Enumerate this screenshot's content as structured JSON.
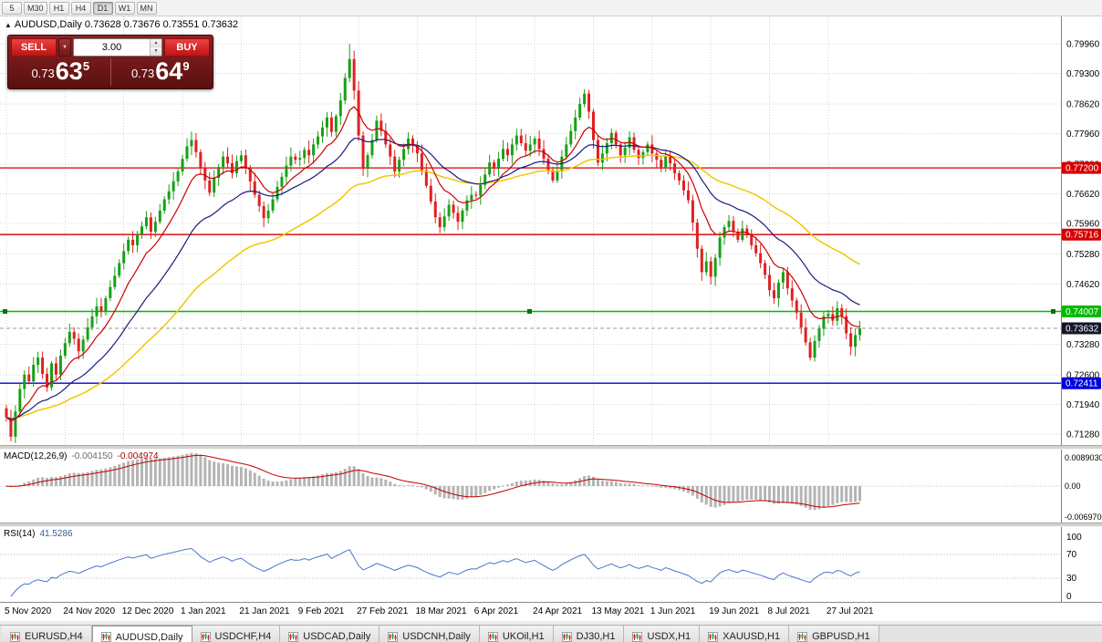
{
  "toolbar": {
    "timeframes": [
      "5",
      "M30",
      "H1",
      "H4",
      "D1",
      "W1",
      "MN"
    ],
    "active": "D1"
  },
  "chart": {
    "arrow": "▲",
    "title": "AUDUSD,Daily 0.73628 0.73676 0.73551 0.73632"
  },
  "one_click": {
    "sell_label": "SELL",
    "buy_label": "BUY",
    "volume": "3.00",
    "sell_price": {
      "small": "0.73",
      "big": "63",
      "sup": "5"
    },
    "buy_price": {
      "small": "0.73",
      "big": "64",
      "sup": "9"
    }
  },
  "macd": {
    "name": "MACD(12,26,9)",
    "main_value": "-0.004150",
    "signal_value": "-0.004974",
    "scale_max": "0.0089030",
    "scale_zero": "0.00",
    "scale_min": "-0.0069700"
  },
  "rsi": {
    "name": "RSI(14)",
    "value": "41.5286",
    "scale": [
      "100",
      "70",
      "30",
      "0"
    ]
  },
  "tabs": [
    {
      "label": "EURUSD,H4"
    },
    {
      "label": "AUDUSD,Daily",
      "active": true
    },
    {
      "label": "USDCHF,H4"
    },
    {
      "label": "USDCAD,Daily"
    },
    {
      "label": "USDCNH,Daily"
    },
    {
      "label": "UKOil,H1"
    },
    {
      "label": "DJ30,H1"
    },
    {
      "label": "USDX,H1"
    },
    {
      "label": "XAUUSD,H1"
    },
    {
      "label": "GBPUSD,H1"
    }
  ],
  "chart_data": {
    "type": "candlestick",
    "symbol": "AUDUSD",
    "timeframe": "Daily",
    "ohlc_current": {
      "open": 0.73628,
      "high": 0.73676,
      "low": 0.73551,
      "close": 0.73632
    },
    "ylim": [
      0.7095,
      0.8015
    ],
    "grid_prices": [
      0.7996,
      0.793,
      0.7862,
      0.7796,
      0.7728,
      0.7662,
      0.7596,
      0.7528,
      0.7462,
      0.7396,
      0.7328,
      0.726,
      0.7194,
      0.7128
    ],
    "x_tick_labels": [
      "5 Nov 2020",
      "24 Nov 2020",
      "12 Dec 2020",
      "1 Jan 2021",
      "21 Jan 2021",
      "9 Feb 2021",
      "27 Feb 2021",
      "18 Mar 2021",
      "6 Apr 2021",
      "24 Apr 2021",
      "13 May 2021",
      "1 Jun 2021",
      "19 Jun 2021",
      "8 Jul 2021",
      "27 Jul 2021"
    ],
    "x_tick_interval": 13,
    "first_open": 0.7185,
    "spike_bar": 76,
    "spike_high": 0.7996,
    "closes": [
      0.7165,
      0.7122,
      0.7178,
      0.7228,
      0.726,
      0.7245,
      0.7282,
      0.7298,
      0.7262,
      0.7232,
      0.7285,
      0.726,
      0.7302,
      0.733,
      0.7355,
      0.734,
      0.7312,
      0.7338,
      0.7365,
      0.739,
      0.7412,
      0.74,
      0.743,
      0.7455,
      0.748,
      0.7508,
      0.7535,
      0.756,
      0.7548,
      0.7572,
      0.759,
      0.761,
      0.7578,
      0.76,
      0.7625,
      0.765,
      0.7668,
      0.769,
      0.7712,
      0.774,
      0.7768,
      0.7782,
      0.7755,
      0.772,
      0.7692,
      0.7665,
      0.7698,
      0.7722,
      0.7745,
      0.773,
      0.7708,
      0.7735,
      0.7748,
      0.772,
      0.769,
      0.766,
      0.7635,
      0.7608,
      0.7625,
      0.765,
      0.7678,
      0.77,
      0.7725,
      0.7745,
      0.7738,
      0.7742,
      0.776,
      0.7748,
      0.7772,
      0.779,
      0.781,
      0.7832,
      0.78,
      0.7835,
      0.787,
      0.792,
      0.7962,
      0.7892,
      0.7792,
      0.7718,
      0.7748,
      0.7782,
      0.7825,
      0.7802,
      0.7772,
      0.7745,
      0.7712,
      0.7738,
      0.7762,
      0.7785,
      0.777,
      0.7752,
      0.7715,
      0.768,
      0.7645,
      0.761,
      0.7588,
      0.7612,
      0.7638,
      0.762,
      0.76,
      0.7625,
      0.7648,
      0.766,
      0.7658,
      0.7682,
      0.7705,
      0.7732,
      0.7718,
      0.774,
      0.7762,
      0.7748,
      0.7772,
      0.7792,
      0.7775,
      0.7758,
      0.7772,
      0.7785,
      0.7762,
      0.774,
      0.7715,
      0.7692,
      0.7712,
      0.7745,
      0.7772,
      0.7802,
      0.7832,
      0.7862,
      0.7885,
      0.7845,
      0.7782,
      0.7732,
      0.7752,
      0.7775,
      0.7798,
      0.7772,
      0.7748,
      0.7765,
      0.7788,
      0.776,
      0.7742,
      0.7755,
      0.7772,
      0.7752,
      0.7738,
      0.772,
      0.7745,
      0.773,
      0.7708,
      0.7692,
      0.767,
      0.7648,
      0.7598,
      0.754,
      0.7488,
      0.7512,
      0.7478,
      0.752,
      0.7565,
      0.7588,
      0.7602,
      0.7578,
      0.756,
      0.7585,
      0.757,
      0.7548,
      0.753,
      0.7508,
      0.7482,
      0.7448,
      0.743,
      0.7465,
      0.7488,
      0.7452,
      0.7425,
      0.7398,
      0.7365,
      0.7332,
      0.7298,
      0.7335,
      0.7362,
      0.739,
      0.7395,
      0.738,
      0.7408,
      0.739,
      0.7352,
      0.7322,
      0.7348,
      0.7363
    ],
    "levels": [
      {
        "price": 0.772,
        "label": "0.77200",
        "color": "#d40000"
      },
      {
        "price": 0.75716,
        "label": "0.75716",
        "color": "#d40000"
      },
      {
        "price": 0.74007,
        "label": "0.74007",
        "color": "#00bb00",
        "selected": true
      },
      {
        "price": 0.72411,
        "label": "0.72411",
        "color": "#0000dd"
      }
    ],
    "current_price": {
      "value": 0.73632,
      "label": "0.73632",
      "color": "#16162a"
    },
    "moving_averages": [
      {
        "period": 10,
        "method": "ema",
        "color": "#cc0000"
      },
      {
        "period": 25,
        "method": "ema",
        "color": "#1a1a7e"
      },
      {
        "period": 55,
        "method": "ema",
        "color": "#f0c800"
      }
    ],
    "macd_params": {
      "fast": 12,
      "slow": 26,
      "signal": 9
    },
    "rsi_params": {
      "period": 14,
      "levels": [
        70,
        30
      ]
    },
    "colors": {
      "up": "#18a018",
      "down": "#e02020",
      "grid": "#d4d4d4",
      "macd_hist": "#b4b4b4",
      "macd_signal": "#c00000",
      "rsi_line": "#4878c8"
    }
  }
}
